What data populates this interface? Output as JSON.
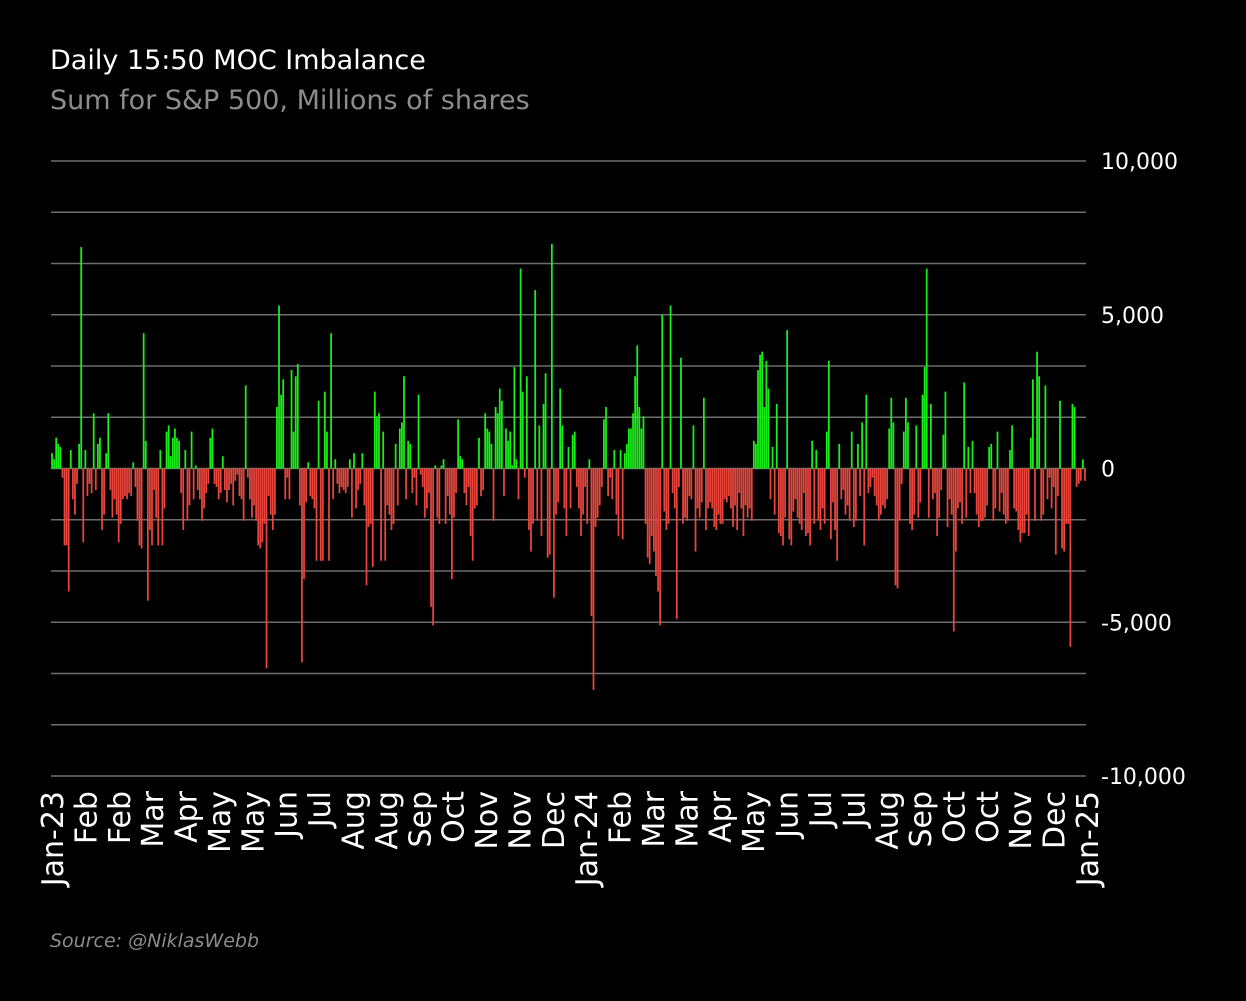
{
  "source": "Source: @NiklasWebb",
  "colors": {
    "background": "#000000",
    "positive": "#19f019",
    "negative": "#e8453c",
    "grid": "#6e6e6e",
    "text": "#ffffff",
    "muted": "#8c8c8c"
  },
  "chart_data": {
    "type": "bar",
    "title": "Daily 15:50 MOC Imbalance",
    "subtitle": "Sum for S&P 500, Millions of shares",
    "xlabel": "",
    "ylabel": "",
    "ylim": [
      -10000,
      10000
    ],
    "y_ticks": [
      10000,
      5000,
      0,
      -5000,
      -10000
    ],
    "y_tick_labels": [
      "10,000",
      "5,000",
      "0",
      "-5,000",
      "-10,000"
    ],
    "y_axis_position": "right",
    "grid": true,
    "x_tick_labels": [
      "Jan-23",
      "Feb",
      "Feb",
      "Mar",
      "Apr",
      "May",
      "May",
      "Jun",
      "Jul",
      "Aug",
      "Aug",
      "Sep",
      "Oct",
      "Nov",
      "Nov",
      "Dec",
      "Jan-24",
      "Feb",
      "Mar",
      "Mar",
      "Apr",
      "May",
      "Jun",
      "Jul",
      "Jul",
      "Aug",
      "Sep",
      "Oct",
      "Oct",
      "Nov",
      "Dec",
      "Jan-25"
    ],
    "values": [
      500,
      300,
      1000,
      800,
      700,
      -300,
      -2500,
      -2500,
      -4000,
      600,
      -1000,
      -1500,
      -500,
      800,
      7200,
      -2400,
      600,
      -900,
      -500,
      -800,
      1800,
      -700,
      800,
      1000,
      -2000,
      -1500,
      500,
      1800,
      -700,
      -1600,
      -1000,
      -1500,
      -2400,
      -1800,
      -1000,
      -900,
      -1000,
      -800,
      -900,
      200,
      -600,
      -1700,
      -2500,
      -2600,
      4400,
      900,
      -4300,
      -2000,
      -2500,
      -700,
      -1600,
      -2500,
      600,
      -2500,
      -1300,
      1200,
      1400,
      400,
      1000,
      1300,
      1000,
      900,
      -800,
      -2000,
      600,
      -1700,
      -1200,
      1200,
      -1000,
      100,
      -700,
      -1000,
      -1700,
      -1300,
      -800,
      -500,
      1000,
      1300,
      -500,
      -600,
      -1000,
      -800,
      400,
      -700,
      -1100,
      -700,
      -500,
      -1200,
      -400,
      -200,
      -900,
      -1000,
      -1700,
      2700,
      -300,
      -1000,
      -1600,
      -1200,
      -1700,
      -2500,
      -2600,
      -2400,
      -1800,
      -6500,
      -900,
      -1500,
      -2000,
      -1500,
      2000,
      5300,
      2400,
      2900,
      -1000,
      -300,
      -1000,
      3200,
      1200,
      3000,
      3400,
      -1200,
      -6300,
      -3600,
      -1100,
      200,
      -900,
      -1000,
      -1300,
      -3000,
      2200,
      -3000,
      -3000,
      2500,
      1200,
      -3000,
      4400,
      -1000,
      300,
      -500,
      -800,
      -600,
      -700,
      -800,
      -600,
      300,
      -1600,
      500,
      -1300,
      -700,
      -500,
      500,
      -1200,
      -3800,
      -1900,
      -1800,
      -3200,
      2500,
      1700,
      1800,
      -3000,
      1200,
      -3000,
      -1200,
      -1500,
      -2000,
      -1800,
      800,
      -1200,
      1300,
      1500,
      3000,
      -1000,
      900,
      800,
      -800,
      -300,
      -1200,
      2400,
      -200,
      -600,
      -1600,
      -1300,
      -800,
      -4500,
      -5100,
      100,
      -1600,
      -1800,
      100,
      300,
      -1800,
      -900,
      -1500,
      -3600,
      -1600,
      -800,
      1600,
      400,
      300,
      -800,
      -1200,
      -600,
      -2200,
      -3000,
      -1300,
      -1200,
      1000,
      -900,
      -700,
      1800,
      1300,
      1200,
      800,
      -1700,
      2000,
      1800,
      2600,
      2200,
      -900,
      1300,
      900,
      1200,
      100,
      3300,
      300,
      -1000,
      6500,
      2500,
      -300,
      3000,
      -2000,
      -2700,
      -1800,
      5800,
      -1700,
      1400,
      -2200,
      2100,
      3100,
      -2900,
      -2800,
      7300,
      -4200,
      -1500,
      -1100,
      2600,
      1400,
      -1300,
      -2200,
      700,
      -1300,
      1100,
      1200,
      -600,
      -1300,
      -2200,
      -1500,
      -600,
      -1800,
      300,
      -4800,
      -7200,
      -1900,
      -1600,
      -1200,
      -600,
      1600,
      2000,
      -900,
      -300,
      -1000,
      600,
      -1500,
      -2200,
      600,
      -2300,
      500,
      800,
      1300,
      1300,
      1800,
      3000,
      4000,
      2000,
      1300,
      1700,
      -1800,
      -2900,
      -3100,
      -2200,
      -2700,
      -3500,
      -4000,
      -5100,
      5000,
      -1400,
      -2000,
      -1800,
      5300,
      -800,
      -1300,
      -4900,
      -600,
      3600,
      -1800,
      -1600,
      -1700,
      -900,
      -1000,
      1400,
      -2700,
      -1300,
      -1600,
      -1100,
      2300,
      -2000,
      -1300,
      -1100,
      -1300,
      -1900,
      -2000,
      -1500,
      -1800,
      -1800,
      -1000,
      -1100,
      -900,
      -1300,
      -1900,
      -1200,
      -2000,
      -800,
      -1300,
      -2200,
      -1200,
      -1600,
      -1300,
      -1700,
      900,
      800,
      3200,
      3700,
      3800,
      2000,
      3500,
      2600,
      -1000,
      700,
      -1500,
      2100,
      -2100,
      -2200,
      -2500,
      -1600,
      4500,
      -2300,
      -2500,
      -1400,
      -1000,
      -1600,
      -1800,
      -2000,
      -800,
      -2200,
      -2100,
      -2500,
      900,
      -1800,
      600,
      -1700,
      -2000,
      -1300,
      -1800,
      1200,
      3500,
      -2300,
      -1100,
      -2000,
      -3000,
      800,
      -1000,
      -700,
      -1500,
      -1200,
      -1700,
      1200,
      -1900,
      -1700,
      800,
      -900,
      1500,
      -2500,
      2400,
      -800,
      -600,
      -300,
      -900,
      -1200,
      -1700,
      -1500,
      -1200,
      -1300,
      -1000,
      1300,
      2300,
      1500,
      -3800,
      -3900,
      -1700,
      -500,
      1200,
      2300,
      1500,
      -1800,
      -2000,
      -1500,
      1400,
      -1600,
      -1100,
      2400,
      3300,
      6500,
      -1600,
      2100,
      -1000,
      -800,
      -2200,
      -1600,
      -700,
      1100,
      2500,
      -1900,
      -1000,
      -1500,
      -5300,
      -2700,
      -1300,
      -1100,
      -1800,
      2800,
      -1600,
      700,
      -800,
      900,
      -800,
      -1500,
      -1900,
      -1700,
      -1700,
      -1600,
      -1200,
      700,
      800,
      -1700,
      -1300,
      1200,
      -1400,
      -800,
      -1500,
      -1800,
      -1700,
      600,
      1400,
      -1300,
      -1400,
      -2000,
      -2400,
      -2100,
      -2100,
      -1500,
      -2200,
      1000,
      2900,
      -1700,
      3800,
      3000,
      -1700,
      -1500,
      2700,
      -1000,
      -300,
      -1300,
      -600,
      -2800,
      -900,
      2200,
      -2600,
      -2700,
      -1800,
      -1800,
      -5800,
      2100,
      2000,
      -600,
      -500,
      -400,
      300,
      -400
    ],
    "annotations": []
  }
}
